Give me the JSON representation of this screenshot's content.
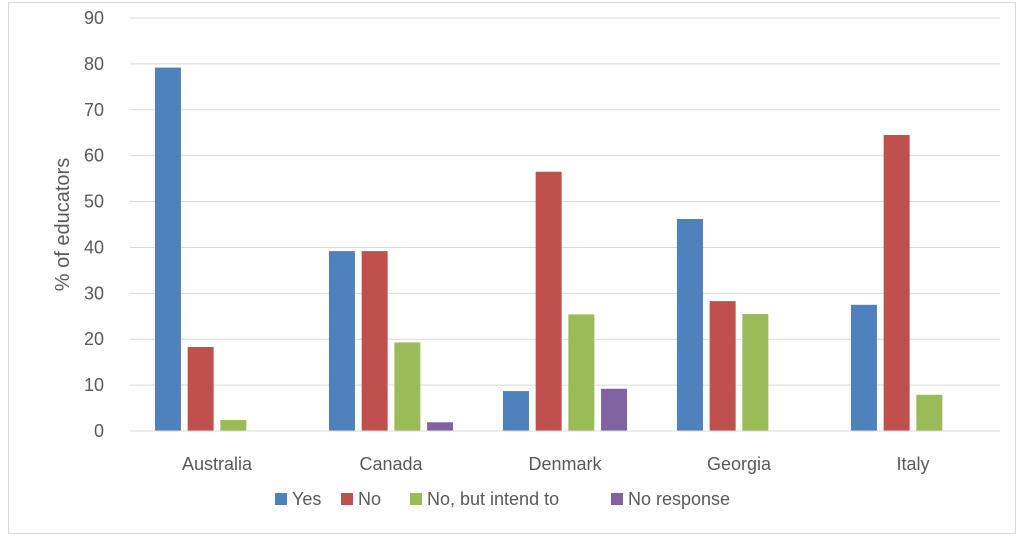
{
  "chart_data": {
    "type": "bar",
    "title": "",
    "xlabel": "",
    "ylabel": "% of educators",
    "ylim": [
      0,
      90
    ],
    "yticks": [
      0,
      10,
      20,
      30,
      40,
      50,
      60,
      70,
      80,
      90
    ],
    "grid": true,
    "legend_position": "bottom",
    "categories": [
      "Australia",
      "Canada",
      "Denmark",
      "Georgia",
      "Italy"
    ],
    "series": [
      {
        "name": "Yes",
        "color": "#4f81bd",
        "values": [
          79.2,
          39.2,
          8.7,
          46.2,
          27.5
        ]
      },
      {
        "name": "No",
        "color": "#c0504d",
        "values": [
          18.3,
          39.2,
          56.5,
          28.3,
          64.5
        ]
      },
      {
        "name": "No, but intend to",
        "color": "#9bbb59",
        "values": [
          2.4,
          19.3,
          25.4,
          25.5,
          7.9
        ]
      },
      {
        "name": "No response",
        "color": "#8064a2",
        "values": [
          0,
          1.9,
          9.2,
          0,
          0
        ]
      }
    ]
  }
}
